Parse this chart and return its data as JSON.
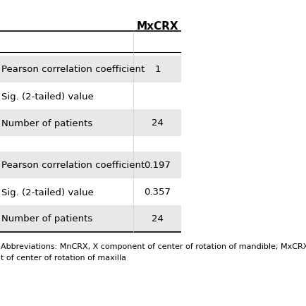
{
  "col_header": "MxCRX",
  "sections": [
    {
      "rows": [
        {
          "label": "Pearson correlation coefficient",
          "value": "1",
          "bg": "#e8e8e8"
        },
        {
          "label": "Sig. (2-tailed) value",
          "value": "",
          "bg": "#ffffff"
        },
        {
          "label": "Number of patients",
          "value": "24",
          "bg": "#e8e8e8"
        }
      ]
    },
    {
      "rows": [
        {
          "label": "Pearson correlation coefficient",
          "value": "0.197",
          "bg": "#e8e8e8"
        },
        {
          "label": "Sig. (2-tailed) value",
          "value": "0.357",
          "bg": "#ffffff"
        },
        {
          "label": "Number of patients",
          "value": "24",
          "bg": "#e8e8e8"
        }
      ]
    }
  ],
  "footer_line1": "Abbreviations: MnCRX, X component of center of rotation of mandible; MxCRX, X componen",
  "footer_line2": "t of center of rotation of maxilla",
  "bg_color": "#ffffff",
  "header_bold": true,
  "font_size": 9.5,
  "header_font_size": 11
}
